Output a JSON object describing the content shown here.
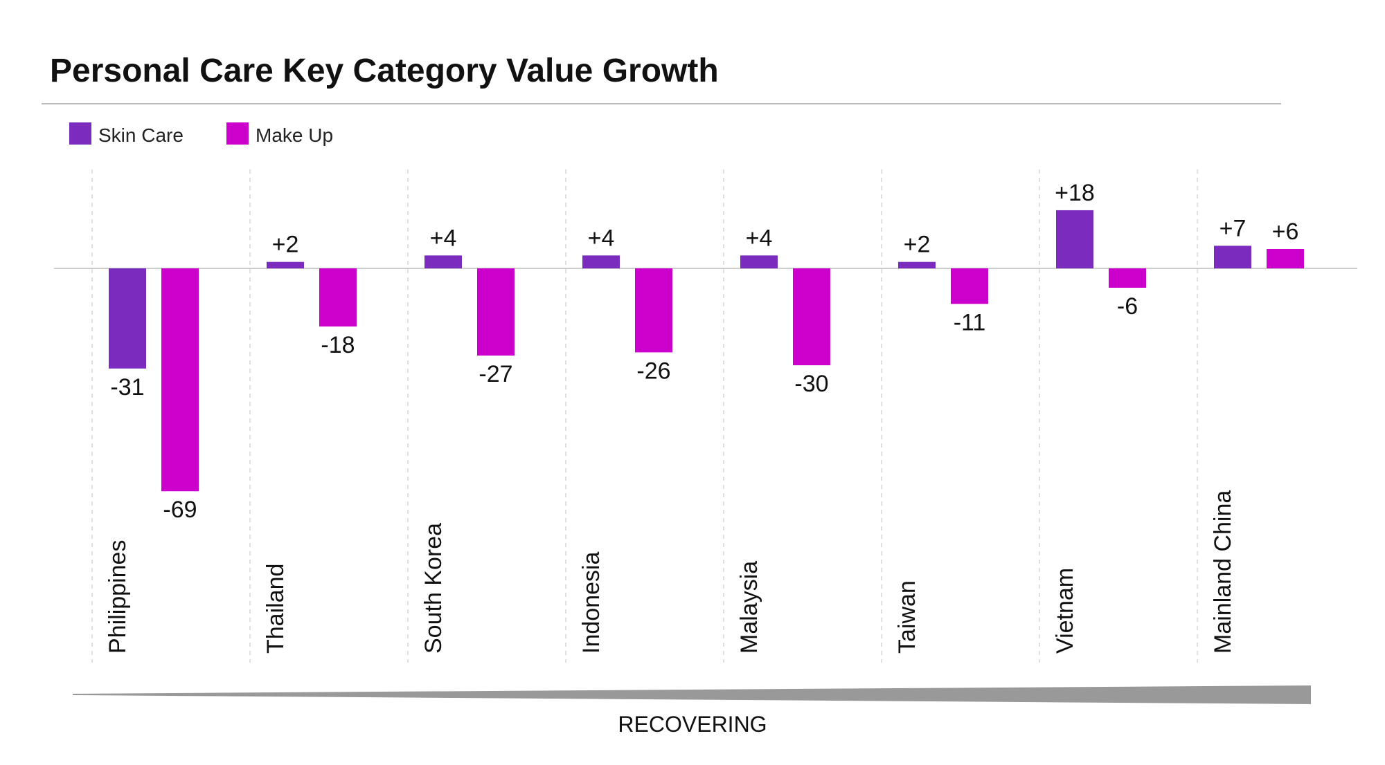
{
  "chart_data": {
    "type": "bar",
    "title": "Personal Care Key Category Value Growth",
    "categories": [
      "Philippines",
      "Thailand",
      "South Korea",
      "Indonesia",
      "Malaysia",
      "Taiwan",
      "Vietnam",
      "Mainland China"
    ],
    "series": [
      {
        "name": "Skin Care",
        "color": "#7B2CBF",
        "values": [
          -31,
          2,
          4,
          4,
          4,
          2,
          18,
          7
        ],
        "labels": [
          "-31",
          "+2",
          "+4",
          "+4",
          "+4",
          "+2",
          "+18",
          "+7"
        ]
      },
      {
        "name": "Make Up",
        "color": "#CC00CC",
        "values": [
          -69,
          -18,
          -27,
          -26,
          -30,
          -11,
          -6,
          6
        ],
        "labels": [
          "-69",
          "-18",
          "-27",
          "-26",
          "-30",
          "-11",
          "-6",
          "+6"
        ]
      }
    ],
    "xlabel": "",
    "ylabel": "",
    "ylim": [
      -75,
      20
    ],
    "grid": false,
    "legend": "top-left",
    "footer_label": "RECOVERING"
  }
}
